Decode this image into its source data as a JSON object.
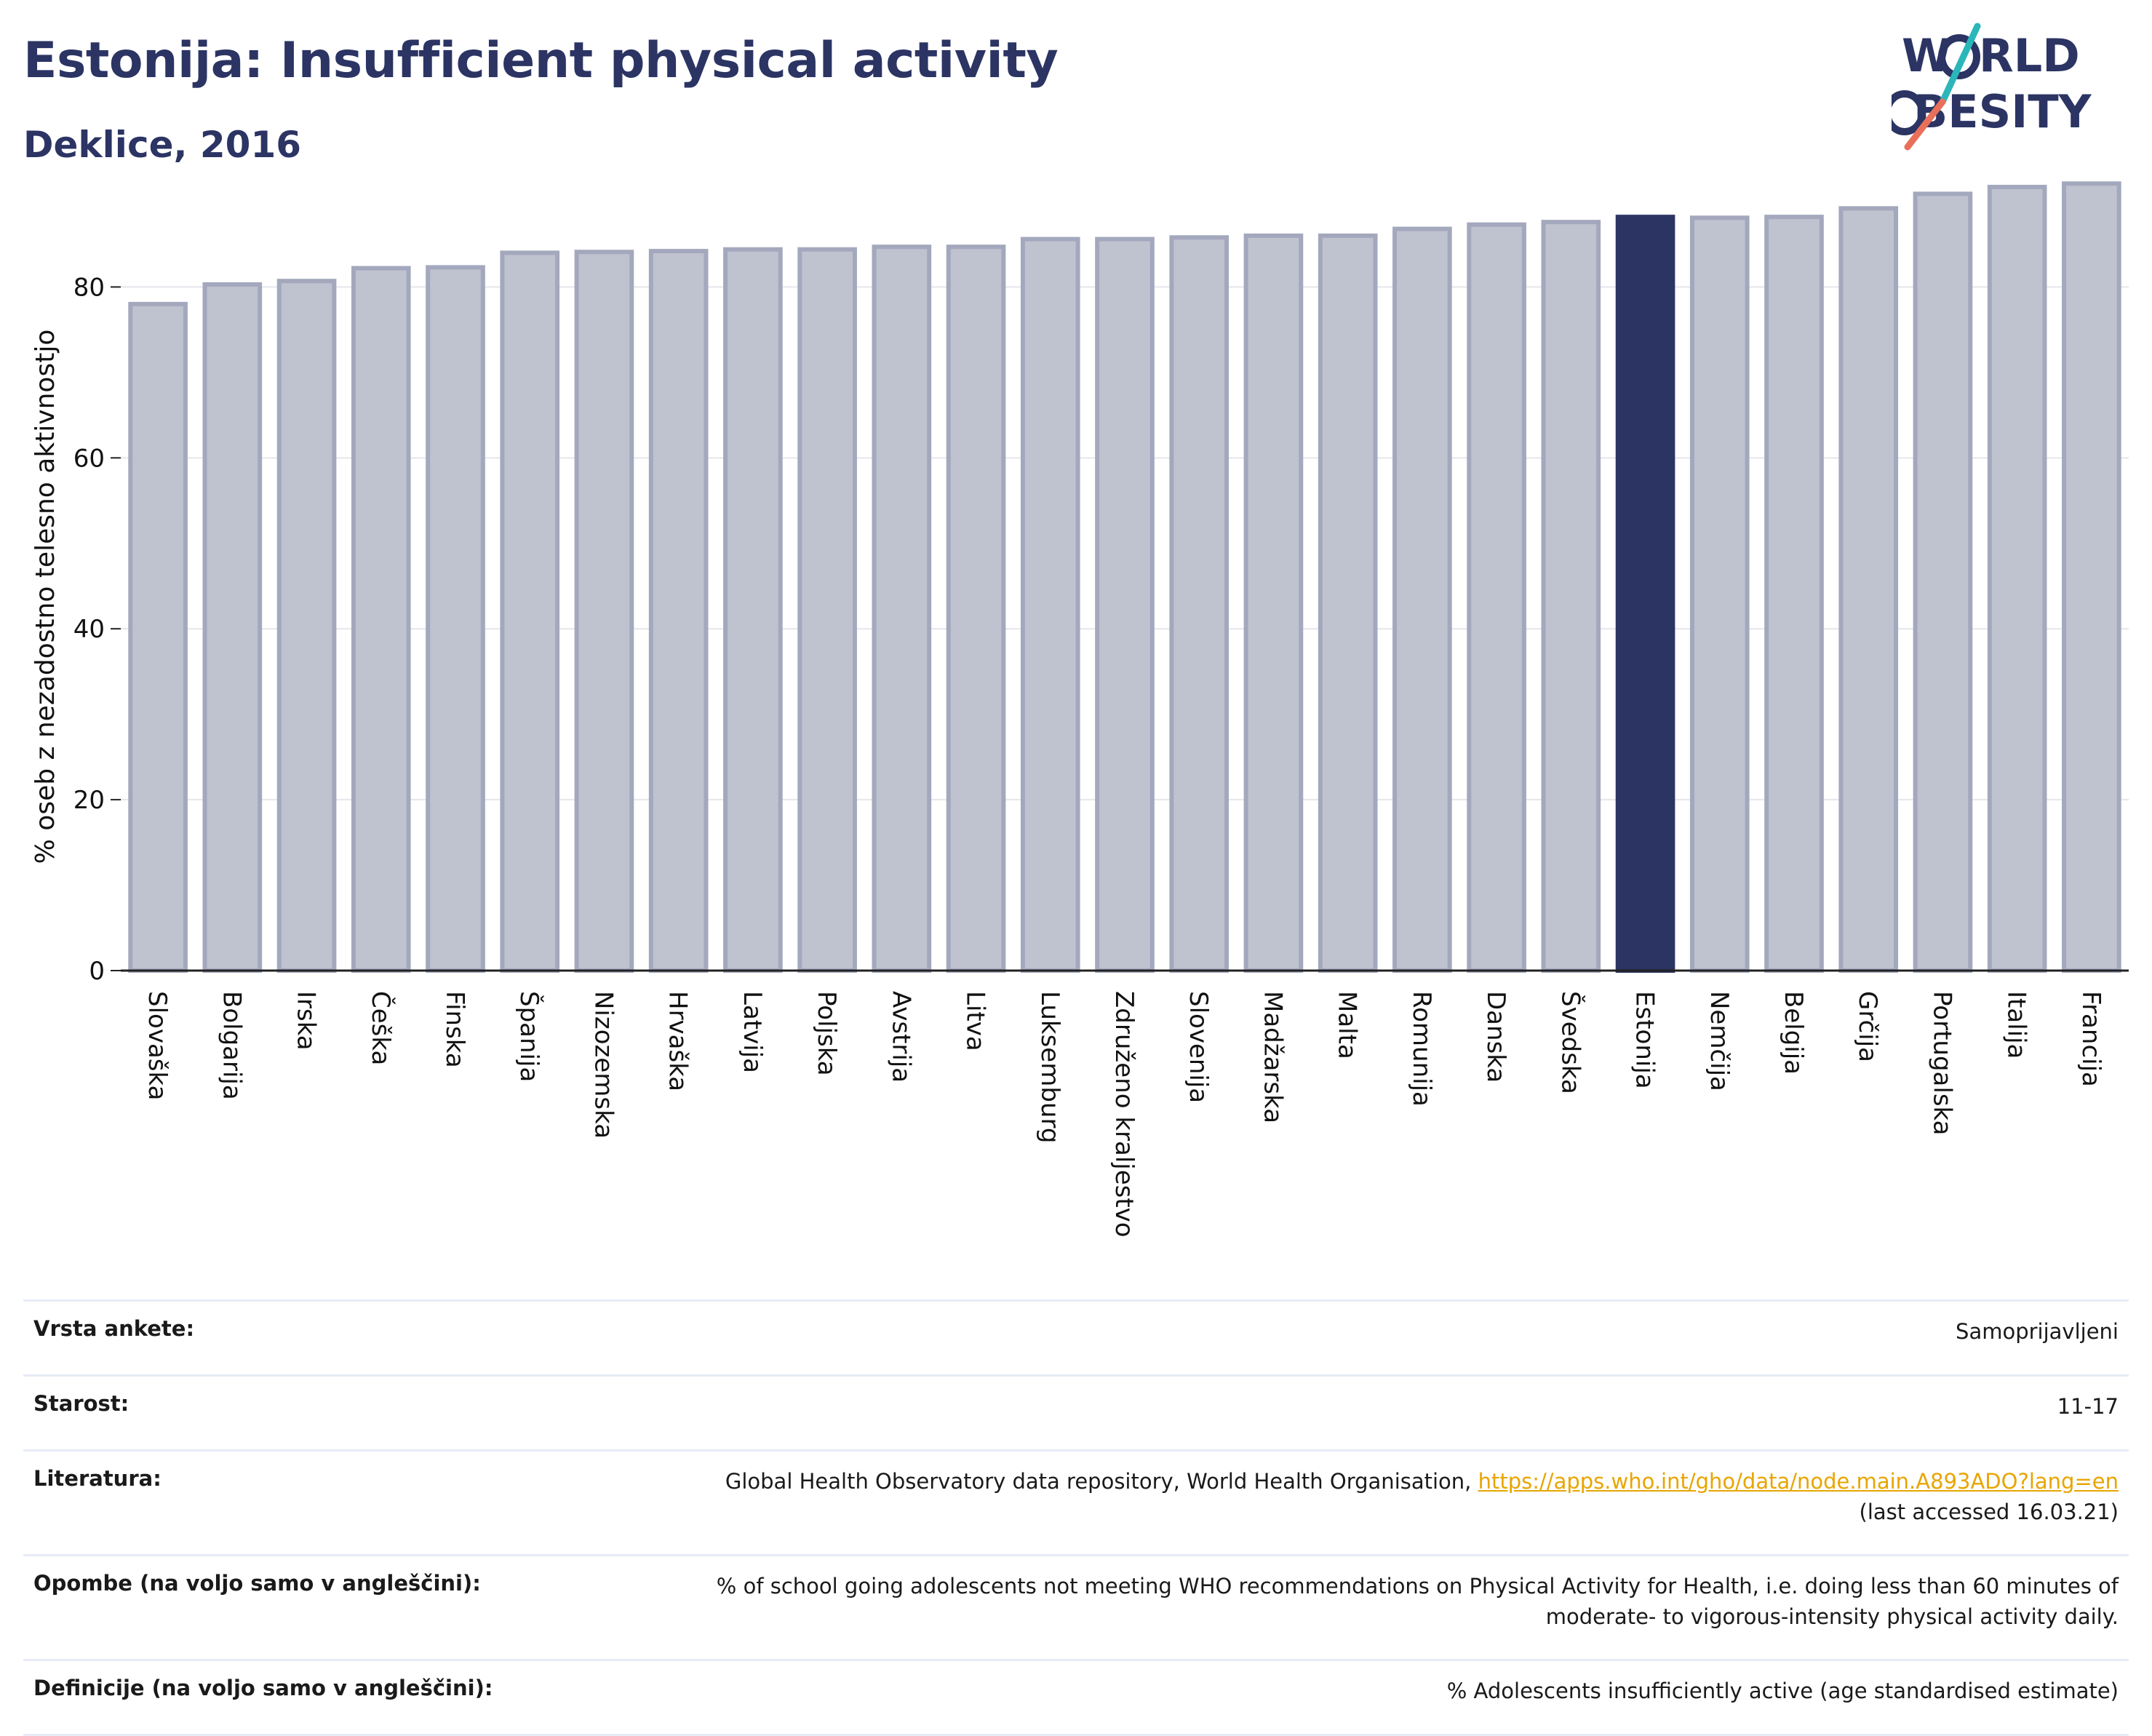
{
  "header": {
    "title": "Estonija: Insufficient physical activity",
    "subtitle": "Deklice, 2016"
  },
  "logo": {
    "line1": "WORLD",
    "line2": "OBESITY",
    "colors": [
      "#2b3463",
      "#2bb6b9",
      "#e8705a"
    ]
  },
  "chart_data": {
    "type": "bar",
    "title": "Estonija: Insufficient physical activity",
    "subtitle": "Deklice, 2016",
    "ylabel": "% oseb z nezadostno telesno aktivnostjo",
    "xlabel": "",
    "ylim": [
      0,
      94
    ],
    "yticks": [
      0,
      20,
      40,
      60,
      80
    ],
    "grid": true,
    "highlight": "Estonija",
    "colors": {
      "default": "#bfc2cf",
      "default_border": "#a3a8bd",
      "highlight": "#2b3463"
    },
    "categories": [
      "Slovaška",
      "Bolgarija",
      "Irska",
      "Češka",
      "Finska",
      "Španija",
      "Nizozemska",
      "Hrvaška",
      "Latvija",
      "Poljska",
      "Avstrija",
      "Litva",
      "Luksemburg",
      "Združeno kraljestvo",
      "Slovenija",
      "Madžarska",
      "Malta",
      "Romunija",
      "Danska",
      "Švedska",
      "Estonija",
      "Nemčija",
      "Belgija",
      "Grčija",
      "Portugalska",
      "Italija",
      "Francija"
    ],
    "values": [
      78.0,
      80.3,
      80.7,
      82.2,
      82.3,
      84.0,
      84.1,
      84.2,
      84.4,
      84.4,
      84.7,
      84.7,
      85.6,
      85.6,
      85.8,
      86.0,
      86.0,
      86.8,
      87.3,
      87.6,
      88.2,
      88.1,
      88.2,
      89.2,
      90.9,
      91.7,
      92.1
    ]
  },
  "meta": [
    {
      "key": "Vrsta ankete:",
      "value": "Samoprijavljeni"
    },
    {
      "key": "Starost:",
      "value": "11-17"
    },
    {
      "key": "Literatura:",
      "value_prefix": "Global Health Observatory data repository, World Health Organisation, ",
      "link": "https://apps.who.int/gho/data/node.main.A893ADO?lang=en",
      "value_suffix": "(last accessed 16.03.21)"
    },
    {
      "key": "Opombe (na voljo samo v angleščini):",
      "value_line1": "% of school going adolescents not meeting WHO recommendations on Physical Activity for Health, i.e. doing less than 60 minutes of",
      "value_line2": "moderate- to vigorous-intensity physical activity daily."
    },
    {
      "key": "Definicije (na voljo samo v angleščini):",
      "value": "% Adolescents insufficiently active (age standardised estimate)"
    }
  ]
}
